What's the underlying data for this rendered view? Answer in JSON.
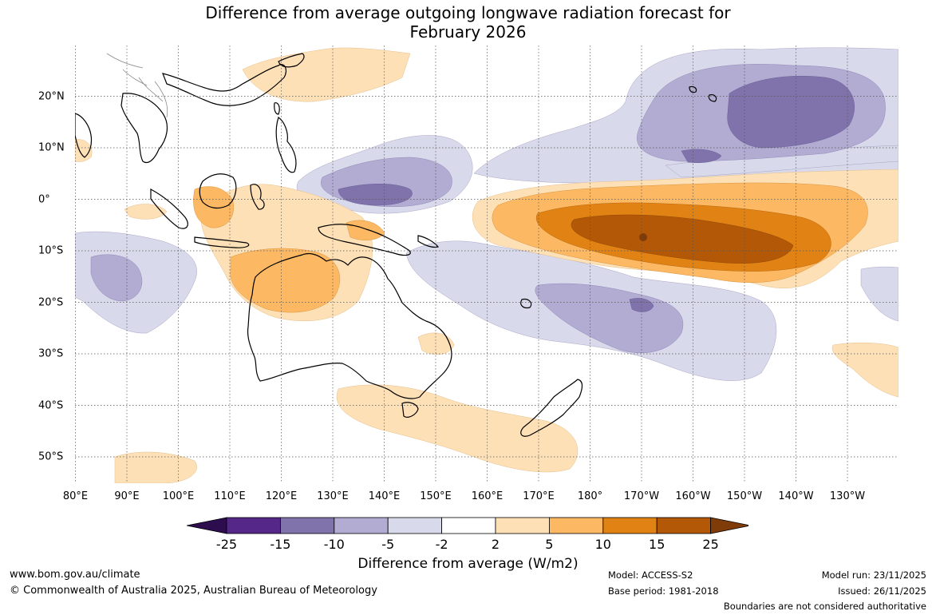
{
  "title": {
    "line1": "Difference from average outgoing longwave radiation forecast for",
    "line2": "February 2026"
  },
  "map": {
    "lon_labels": [
      "80°E",
      "90°E",
      "100°E",
      "110°E",
      "120°E",
      "130°E",
      "140°E",
      "150°E",
      "160°E",
      "170°E",
      "180°",
      "170°W",
      "160°W",
      "150°W",
      "140°W",
      "130°W"
    ],
    "lat_labels": [
      "20°N",
      "10°N",
      "0°",
      "10°S",
      "20°S",
      "30°S",
      "40°S",
      "50°S"
    ],
    "regions": [
      {
        "name": "central-pacific-positive-anomaly",
        "category": "25"
      },
      {
        "name": "north-pacific-negative-anomaly",
        "category": "-15"
      },
      {
        "name": "maritime-continent-negative-anomaly",
        "category": "-15"
      },
      {
        "name": "south-pacific-negative-anomaly",
        "category": "-10"
      },
      {
        "name": "northern-australia-positive-anomaly",
        "category": "10"
      },
      {
        "name": "indian-ocean-negative-anomaly",
        "category": "-5"
      }
    ]
  },
  "legend": {
    "ticks": [
      "-25",
      "-15",
      "-10",
      "-5",
      "-2",
      "2",
      "5",
      "10",
      "15",
      "25"
    ],
    "colors": [
      "#2d0d4e",
      "#542788",
      "#8073ac",
      "#b2abd2",
      "#d8daeb",
      "#ffffff",
      "#fee0b6",
      "#fdb863",
      "#e08214",
      "#b35806",
      "#7f3b08"
    ],
    "label": "Difference from average (W/m2)"
  },
  "footer": {
    "url": "www.bom.gov.au/climate",
    "copyright": "© Commonwealth of Australia 2025, Australian Bureau of Meteorology",
    "model": "Model: ACCESS-S2",
    "base_period": "Base period: 1981-2018",
    "model_run": "Model run: 23/11/2025",
    "issued": "Issued: 26/11/2025",
    "disclaimer": "Boundaries are not considered authoritative"
  }
}
